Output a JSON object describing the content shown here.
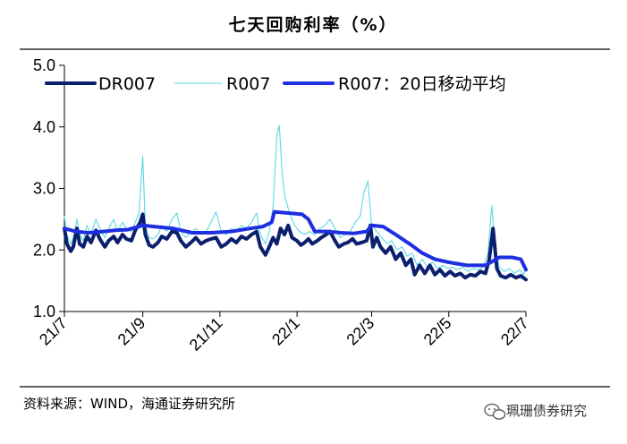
{
  "chart_data": {
    "type": "line",
    "title": "七天回购利率（%）",
    "xlabel": "",
    "ylabel": "",
    "ylim": [
      1.0,
      5.0
    ],
    "yticks": [
      "1.0",
      "2.0",
      "3.0",
      "4.0",
      "5.0"
    ],
    "x_range": [
      "2021-07-01",
      "2022-07-01"
    ],
    "x_tick_dates": [
      "2021-07-01",
      "2021-09-01",
      "2021-11-01",
      "2022-01-01",
      "2022-03-01",
      "2022-05-01",
      "2022-07-01"
    ],
    "xticks": [
      "21/7",
      "21/9",
      "21/11",
      "22/1",
      "22/3",
      "22/5",
      "22/7"
    ],
    "grid": false,
    "legend_position": "top",
    "series": [
      {
        "name": "DR007",
        "color": "#0b1f6e",
        "points": [
          [
            "2021-07-01",
            2.35
          ],
          [
            "2021-07-03",
            2.1
          ],
          [
            "2021-07-06",
            1.98
          ],
          [
            "2021-07-08",
            2.05
          ],
          [
            "2021-07-11",
            2.35
          ],
          [
            "2021-07-13",
            2.1
          ],
          [
            "2021-07-16",
            2.05
          ],
          [
            "2021-07-19",
            2.22
          ],
          [
            "2021-07-22",
            2.12
          ],
          [
            "2021-07-26",
            2.32
          ],
          [
            "2021-07-29",
            2.18
          ],
          [
            "2021-08-02",
            2.05
          ],
          [
            "2021-08-05",
            2.15
          ],
          [
            "2021-08-09",
            2.22
          ],
          [
            "2021-08-12",
            2.12
          ],
          [
            "2021-08-16",
            2.25
          ],
          [
            "2021-08-19",
            2.18
          ],
          [
            "2021-08-23",
            2.15
          ],
          [
            "2021-08-26",
            2.32
          ],
          [
            "2021-08-30",
            2.45
          ],
          [
            "2021-09-01",
            2.58
          ],
          [
            "2021-09-03",
            2.25
          ],
          [
            "2021-09-06",
            2.08
          ],
          [
            "2021-09-09",
            2.05
          ],
          [
            "2021-09-13",
            2.12
          ],
          [
            "2021-09-16",
            2.22
          ],
          [
            "2021-09-20",
            2.18
          ],
          [
            "2021-09-24",
            2.3
          ],
          [
            "2021-09-28",
            2.28
          ],
          [
            "2021-10-01",
            2.15
          ],
          [
            "2021-10-05",
            2.05
          ],
          [
            "2021-10-09",
            2.12
          ],
          [
            "2021-10-13",
            2.2
          ],
          [
            "2021-10-17",
            2.1
          ],
          [
            "2021-10-21",
            2.15
          ],
          [
            "2021-10-25",
            2.18
          ],
          [
            "2021-10-29",
            2.2
          ],
          [
            "2021-11-02",
            2.05
          ],
          [
            "2021-11-06",
            2.1
          ],
          [
            "2021-11-10",
            2.18
          ],
          [
            "2021-11-14",
            2.12
          ],
          [
            "2021-11-18",
            2.22
          ],
          [
            "2021-11-22",
            2.18
          ],
          [
            "2021-11-26",
            2.25
          ],
          [
            "2021-11-30",
            2.3
          ],
          [
            "2021-12-03",
            2.05
          ],
          [
            "2021-12-07",
            1.92
          ],
          [
            "2021-12-10",
            2.05
          ],
          [
            "2021-12-13",
            2.2
          ],
          [
            "2021-12-16",
            2.1
          ],
          [
            "2021-12-19",
            2.35
          ],
          [
            "2021-12-22",
            2.25
          ],
          [
            "2021-12-25",
            2.4
          ],
          [
            "2021-12-28",
            2.2
          ],
          [
            "2022-01-01",
            2.15
          ],
          [
            "2022-01-04",
            2.08
          ],
          [
            "2022-01-07",
            2.12
          ],
          [
            "2022-01-10",
            2.18
          ],
          [
            "2022-01-13",
            2.1
          ],
          [
            "2022-01-17",
            2.15
          ],
          [
            "2022-01-20",
            2.2
          ],
          [
            "2022-01-24",
            2.25
          ],
          [
            "2022-01-27",
            2.3
          ],
          [
            "2022-01-31",
            2.15
          ],
          [
            "2022-02-03",
            2.05
          ],
          [
            "2022-02-07",
            2.1
          ],
          [
            "2022-02-10",
            2.12
          ],
          [
            "2022-02-14",
            2.18
          ],
          [
            "2022-02-17",
            2.1
          ],
          [
            "2022-02-21",
            2.12
          ],
          [
            "2022-02-25",
            2.15
          ],
          [
            "2022-02-28",
            2.4
          ],
          [
            "2022-03-02",
            2.05
          ],
          [
            "2022-03-05",
            2.2
          ],
          [
            "2022-03-08",
            2.05
          ],
          [
            "2022-03-12",
            1.95
          ],
          [
            "2022-03-16",
            2.05
          ],
          [
            "2022-03-20",
            1.85
          ],
          [
            "2022-03-24",
            1.95
          ],
          [
            "2022-03-28",
            1.75
          ],
          [
            "2022-04-01",
            1.85
          ],
          [
            "2022-04-04",
            1.6
          ],
          [
            "2022-04-08",
            1.75
          ],
          [
            "2022-04-12",
            1.62
          ],
          [
            "2022-04-16",
            1.75
          ],
          [
            "2022-04-20",
            1.6
          ],
          [
            "2022-04-24",
            1.68
          ],
          [
            "2022-04-28",
            1.58
          ],
          [
            "2022-05-02",
            1.65
          ],
          [
            "2022-05-06",
            1.58
          ],
          [
            "2022-05-10",
            1.62
          ],
          [
            "2022-05-14",
            1.55
          ],
          [
            "2022-05-18",
            1.6
          ],
          [
            "2022-05-22",
            1.58
          ],
          [
            "2022-05-26",
            1.65
          ],
          [
            "2022-05-30",
            1.62
          ],
          [
            "2022-06-02",
            1.85
          ],
          [
            "2022-06-05",
            2.35
          ],
          [
            "2022-06-08",
            1.7
          ],
          [
            "2022-06-11",
            1.58
          ],
          [
            "2022-06-15",
            1.55
          ],
          [
            "2022-06-19",
            1.6
          ],
          [
            "2022-06-23",
            1.55
          ],
          [
            "2022-06-27",
            1.58
          ],
          [
            "2022-07-01",
            1.52
          ]
        ]
      },
      {
        "name": "R007",
        "color": "#5cd7e5",
        "points": [
          [
            "2021-07-01",
            2.55
          ],
          [
            "2021-07-03",
            2.25
          ],
          [
            "2021-07-06",
            2.1
          ],
          [
            "2021-07-08",
            2.2
          ],
          [
            "2021-07-11",
            2.5
          ],
          [
            "2021-07-13",
            2.25
          ],
          [
            "2021-07-16",
            2.15
          ],
          [
            "2021-07-19",
            2.4
          ],
          [
            "2021-07-22",
            2.25
          ],
          [
            "2021-07-26",
            2.5
          ],
          [
            "2021-07-29",
            2.35
          ],
          [
            "2021-08-02",
            2.2
          ],
          [
            "2021-08-05",
            2.35
          ],
          [
            "2021-08-09",
            2.5
          ],
          [
            "2021-08-12",
            2.3
          ],
          [
            "2021-08-16",
            2.45
          ],
          [
            "2021-08-19",
            2.35
          ],
          [
            "2021-08-23",
            2.3
          ],
          [
            "2021-08-26",
            2.45
          ],
          [
            "2021-08-29",
            2.6
          ],
          [
            "2021-09-01",
            3.52
          ],
          [
            "2021-09-03",
            2.4
          ],
          [
            "2021-09-06",
            2.2
          ],
          [
            "2021-09-09",
            2.18
          ],
          [
            "2021-09-13",
            2.25
          ],
          [
            "2021-09-16",
            2.4
          ],
          [
            "2021-09-20",
            2.3
          ],
          [
            "2021-09-24",
            2.5
          ],
          [
            "2021-09-28",
            2.6
          ],
          [
            "2021-10-01",
            2.3
          ],
          [
            "2021-10-05",
            2.2
          ],
          [
            "2021-10-09",
            2.28
          ],
          [
            "2021-10-13",
            2.35
          ],
          [
            "2021-10-17",
            2.25
          ],
          [
            "2021-10-21",
            2.3
          ],
          [
            "2021-10-25",
            2.45
          ],
          [
            "2021-10-29",
            2.62
          ],
          [
            "2021-11-02",
            2.3
          ],
          [
            "2021-11-06",
            2.25
          ],
          [
            "2021-11-10",
            2.35
          ],
          [
            "2021-11-14",
            2.3
          ],
          [
            "2021-11-18",
            2.4
          ],
          [
            "2021-11-22",
            2.35
          ],
          [
            "2021-11-26",
            2.45
          ],
          [
            "2021-11-30",
            2.6
          ],
          [
            "2021-12-03",
            2.25
          ],
          [
            "2021-12-07",
            2.1
          ],
          [
            "2021-12-10",
            2.3
          ],
          [
            "2021-12-13",
            2.7
          ],
          [
            "2021-12-16",
            3.85
          ],
          [
            "2021-12-18",
            4.02
          ],
          [
            "2021-12-20",
            3.3
          ],
          [
            "2021-12-22",
            2.9
          ],
          [
            "2021-12-26",
            2.6
          ],
          [
            "2021-12-30",
            2.4
          ],
          [
            "2022-01-03",
            2.3
          ],
          [
            "2022-01-07",
            2.25
          ],
          [
            "2022-01-11",
            2.3
          ],
          [
            "2022-01-15",
            2.25
          ],
          [
            "2022-01-19",
            2.35
          ],
          [
            "2022-01-23",
            2.4
          ],
          [
            "2022-01-27",
            2.5
          ],
          [
            "2022-01-31",
            2.35
          ],
          [
            "2022-02-04",
            2.2
          ],
          [
            "2022-02-08",
            2.25
          ],
          [
            "2022-02-12",
            2.3
          ],
          [
            "2022-02-16",
            2.45
          ],
          [
            "2022-02-20",
            2.55
          ],
          [
            "2022-02-23",
            2.95
          ],
          [
            "2022-02-26",
            3.12
          ],
          [
            "2022-03-01",
            2.4
          ],
          [
            "2022-03-05",
            2.3
          ],
          [
            "2022-03-09",
            2.2
          ],
          [
            "2022-03-13",
            2.1
          ],
          [
            "2022-03-17",
            2.15
          ],
          [
            "2022-03-21",
            2.0
          ],
          [
            "2022-03-25",
            2.05
          ],
          [
            "2022-03-29",
            1.9
          ],
          [
            "2022-04-02",
            1.95
          ],
          [
            "2022-04-06",
            1.75
          ],
          [
            "2022-04-10",
            1.85
          ],
          [
            "2022-04-14",
            1.72
          ],
          [
            "2022-04-18",
            1.8
          ],
          [
            "2022-04-22",
            1.7
          ],
          [
            "2022-04-26",
            1.75
          ],
          [
            "2022-04-30",
            1.7
          ],
          [
            "2022-05-04",
            1.72
          ],
          [
            "2022-05-08",
            1.68
          ],
          [
            "2022-05-12",
            1.72
          ],
          [
            "2022-05-16",
            1.65
          ],
          [
            "2022-05-20",
            1.7
          ],
          [
            "2022-05-24",
            1.68
          ],
          [
            "2022-05-28",
            1.72
          ],
          [
            "2022-06-01",
            1.95
          ],
          [
            "2022-06-04",
            2.72
          ],
          [
            "2022-06-07",
            2.0
          ],
          [
            "2022-06-10",
            1.72
          ],
          [
            "2022-06-14",
            1.65
          ],
          [
            "2022-06-18",
            1.7
          ],
          [
            "2022-06-22",
            1.62
          ],
          [
            "2022-06-26",
            1.68
          ],
          [
            "2022-06-29",
            1.6
          ],
          [
            "2022-07-01",
            1.7
          ]
        ]
      },
      {
        "name": "R007：20日移动平均",
        "color": "#1d2fe0",
        "points": [
          [
            "2021-07-01",
            2.35
          ],
          [
            "2021-07-10",
            2.3
          ],
          [
            "2021-07-20",
            2.28
          ],
          [
            "2021-08-01",
            2.3
          ],
          [
            "2021-08-10",
            2.32
          ],
          [
            "2021-08-20",
            2.33
          ],
          [
            "2021-09-01",
            2.4
          ],
          [
            "2021-09-10",
            2.38
          ],
          [
            "2021-09-25",
            2.35
          ],
          [
            "2021-10-10",
            2.28
          ],
          [
            "2021-10-25",
            2.28
          ],
          [
            "2021-11-10",
            2.3
          ],
          [
            "2021-11-25",
            2.35
          ],
          [
            "2021-12-05",
            2.38
          ],
          [
            "2021-12-12",
            2.45
          ],
          [
            "2021-12-14",
            2.62
          ],
          [
            "2021-12-25",
            2.6
          ],
          [
            "2022-01-05",
            2.58
          ],
          [
            "2022-01-10",
            2.5
          ],
          [
            "2022-01-15",
            2.3
          ],
          [
            "2022-01-25",
            2.3
          ],
          [
            "2022-02-05",
            2.28
          ],
          [
            "2022-02-15",
            2.27
          ],
          [
            "2022-02-25",
            2.3
          ],
          [
            "2022-03-01",
            2.4
          ],
          [
            "2022-03-10",
            2.38
          ],
          [
            "2022-03-20",
            2.25
          ],
          [
            "2022-03-31",
            2.1
          ],
          [
            "2022-04-10",
            1.95
          ],
          [
            "2022-04-20",
            1.85
          ],
          [
            "2022-05-01",
            1.8
          ],
          [
            "2022-05-15",
            1.75
          ],
          [
            "2022-05-30",
            1.75
          ],
          [
            "2022-06-05",
            1.82
          ],
          [
            "2022-06-10",
            1.88
          ],
          [
            "2022-06-20",
            1.88
          ],
          [
            "2022-06-27",
            1.85
          ],
          [
            "2022-07-01",
            1.68
          ]
        ]
      }
    ]
  },
  "source": "资料来源：WIND，海通证券研究所",
  "watermark": "珮珊债券研究",
  "colors": {
    "title_rule": "#000000",
    "axis": "#000000"
  },
  "icons": {
    "watermark": "wechat-icon"
  }
}
